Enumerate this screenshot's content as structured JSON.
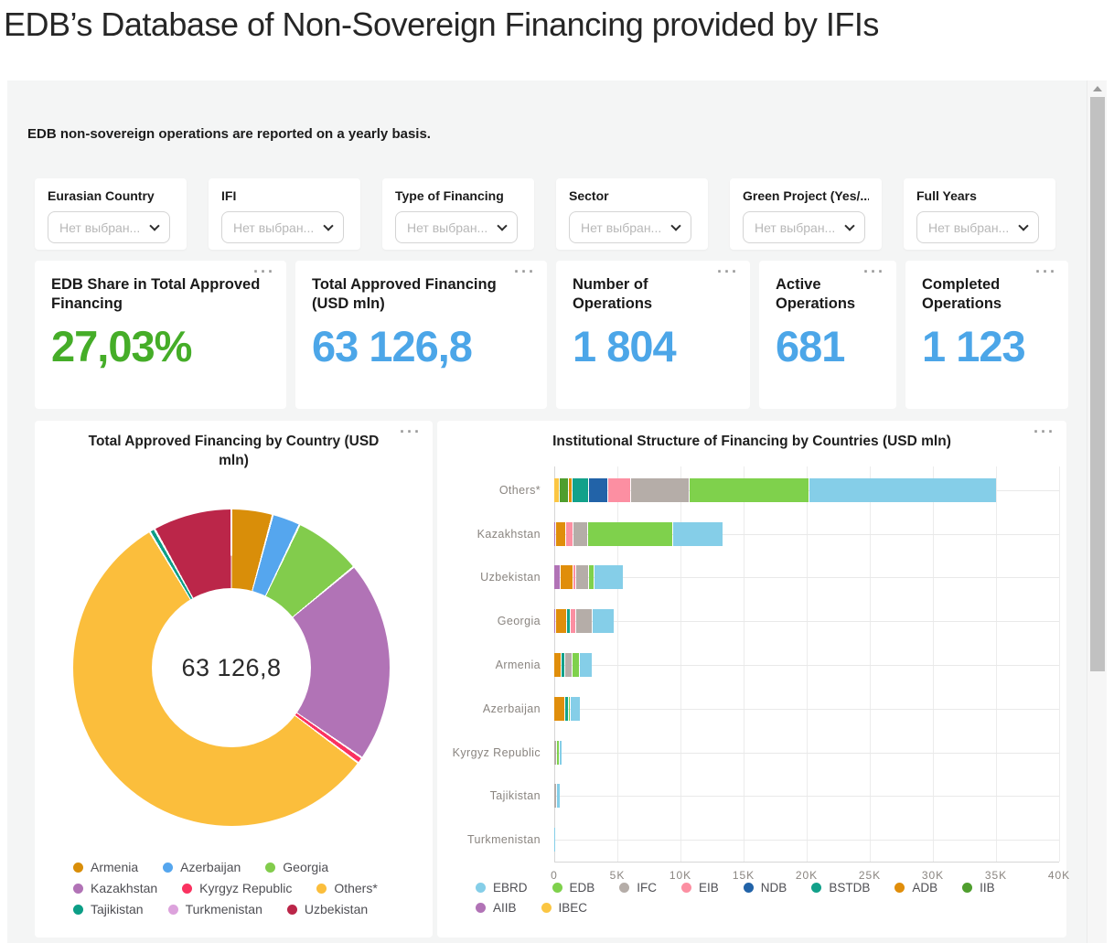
{
  "page": {
    "title": "EDB’s Database of Non-Sovereign Financing provided by IFIs",
    "subtitle": "EDB non-sovereign operations are reported on a yearly basis."
  },
  "ui": {
    "icons": {
      "more_menu": "···"
    }
  },
  "filters": [
    {
      "label": "Eurasian Country",
      "placeholder": "Нет выбран..."
    },
    {
      "label": "IFI",
      "placeholder": "Нет выбран..."
    },
    {
      "label": "Type of Financing",
      "placeholder": "Нет выбран..."
    },
    {
      "label": "Sector",
      "placeholder": "Нет выбран..."
    },
    {
      "label": "Green Project (Yes/...",
      "placeholder": "Нет выбран..."
    },
    {
      "label": "Full Years",
      "placeholder": "Нет выбран..."
    }
  ],
  "kpis": [
    {
      "label": "EDB Share in Total Approved Financing",
      "value": "27,03%",
      "color": "#45AD28"
    },
    {
      "label": "Total Approved Financing (USD mln)",
      "value": "63 126,8",
      "color": "#4CA6E8"
    },
    {
      "label": "Number of Operations",
      "value": "1 804",
      "color": "#4CA6E8"
    },
    {
      "label": "Active Operations",
      "value": "681",
      "color": "#4CA6E8"
    },
    {
      "label": "Completed Operations",
      "value": "1 123",
      "color": "#4CA6E8"
    }
  ],
  "chart_data": [
    {
      "type": "pie",
      "donut": true,
      "title": "Total Approved Financing by Country (USD mln)",
      "center_label": "63 126,8",
      "total": 63126.8,
      "slices": [
        {
          "label": "Armenia",
          "value": 2660,
          "color": "#D98E09"
        },
        {
          "label": "Azerbaijan",
          "value": 1810,
          "color": "#55A6EE"
        },
        {
          "label": "Georgia",
          "value": 4380,
          "color": "#82CC4C"
        },
        {
          "label": "Kazakhstan",
          "value": 13000,
          "color": "#B173B6"
        },
        {
          "label": "Kyrgyz Republic",
          "value": 400,
          "color": "#FA3260"
        },
        {
          "label": "Others*",
          "value": 35441.8,
          "color": "#FBBE3C"
        },
        {
          "label": "Tajikistan",
          "value": 340,
          "color": "#0C9E86"
        },
        {
          "label": "Turkmenistan",
          "value": 15,
          "color": "#DCA2DC"
        },
        {
          "label": "Uzbekistan",
          "value": 5080,
          "color": "#BB2649"
        }
      ],
      "legend_rows": [
        [
          "Armenia",
          "Azerbaijan",
          "Georgia"
        ],
        [
          "Kazakhstan",
          "Kyrgyz Republic",
          "Others*"
        ],
        [
          "Tajikistan",
          "Turkmenistan",
          "Uzbekistan"
        ]
      ],
      "legend_position": "bottom"
    },
    {
      "type": "bar",
      "orientation": "horizontal",
      "stacked": true,
      "title": "Institutional Structure of Financing by Countries (USD mln)",
      "categories": [
        "Others*",
        "Kazakhstan",
        "Uzbekistan",
        "Georgia",
        "Armenia",
        "Azerbaijan",
        "Kyrgyz Republic",
        "Tajikistan",
        "Turkmenistan"
      ],
      "xlim": [
        0,
        40000
      ],
      "x_ticks": [
        "0",
        "5K",
        "10K",
        "15K",
        "20K",
        "25K",
        "30K",
        "35K",
        "40K"
      ],
      "grid": true,
      "stack_order": "reverse-legend (IBEC first from axis, EBRD outermost)",
      "series": [
        {
          "name": "EBRD",
          "color": "#85CEE8",
          "values": [
            14800,
            3945,
            2250,
            1700,
            900,
            730,
            120,
            220,
            15
          ]
        },
        {
          "name": "EDB",
          "color": "#7FD14C",
          "values": [
            9400,
            6680,
            350,
            0,
            550,
            100,
            130,
            0,
            0
          ]
        },
        {
          "name": "IFC",
          "color": "#B5ADA8",
          "values": [
            4600,
            1040,
            950,
            1200,
            500,
            0,
            150,
            120,
            0
          ]
        },
        {
          "name": "EIB",
          "color": "#FC8FA2",
          "values": [
            1750,
            520,
            130,
            420,
            0,
            0,
            0,
            0,
            0
          ]
        },
        {
          "name": "NDB",
          "color": "#2263A8",
          "values": [
            1450,
            0,
            0,
            0,
            0,
            0,
            0,
            0,
            0
          ]
        },
        {
          "name": "BSTDB",
          "color": "#12A18A",
          "values": [
            1250,
            0,
            0,
            160,
            190,
            180,
            0,
            0,
            0
          ]
        },
        {
          "name": "ADB",
          "color": "#E08E0B",
          "values": [
            200,
            715,
            1000,
            800,
            520,
            800,
            0,
            0,
            0
          ]
        },
        {
          "name": "IIB",
          "color": "#4F9E2E",
          "values": [
            650,
            0,
            0,
            0,
            0,
            0,
            0,
            0,
            0
          ]
        },
        {
          "name": "AIIB",
          "color": "#B173B6",
          "values": [
            0,
            100,
            400,
            100,
            0,
            0,
            0,
            0,
            0
          ]
        },
        {
          "name": "IBEC",
          "color": "#FBC643",
          "values": [
            350,
            0,
            0,
            0,
            0,
            0,
            0,
            0,
            0
          ]
        }
      ],
      "legend_rows": [
        [
          "EBRD",
          "EDB",
          "IFC",
          "EIB",
          "NDB",
          "BSTDB",
          "ADB",
          "IIB"
        ],
        [
          "AIIB",
          "IBEC"
        ]
      ],
      "legend_position": "bottom"
    }
  ]
}
